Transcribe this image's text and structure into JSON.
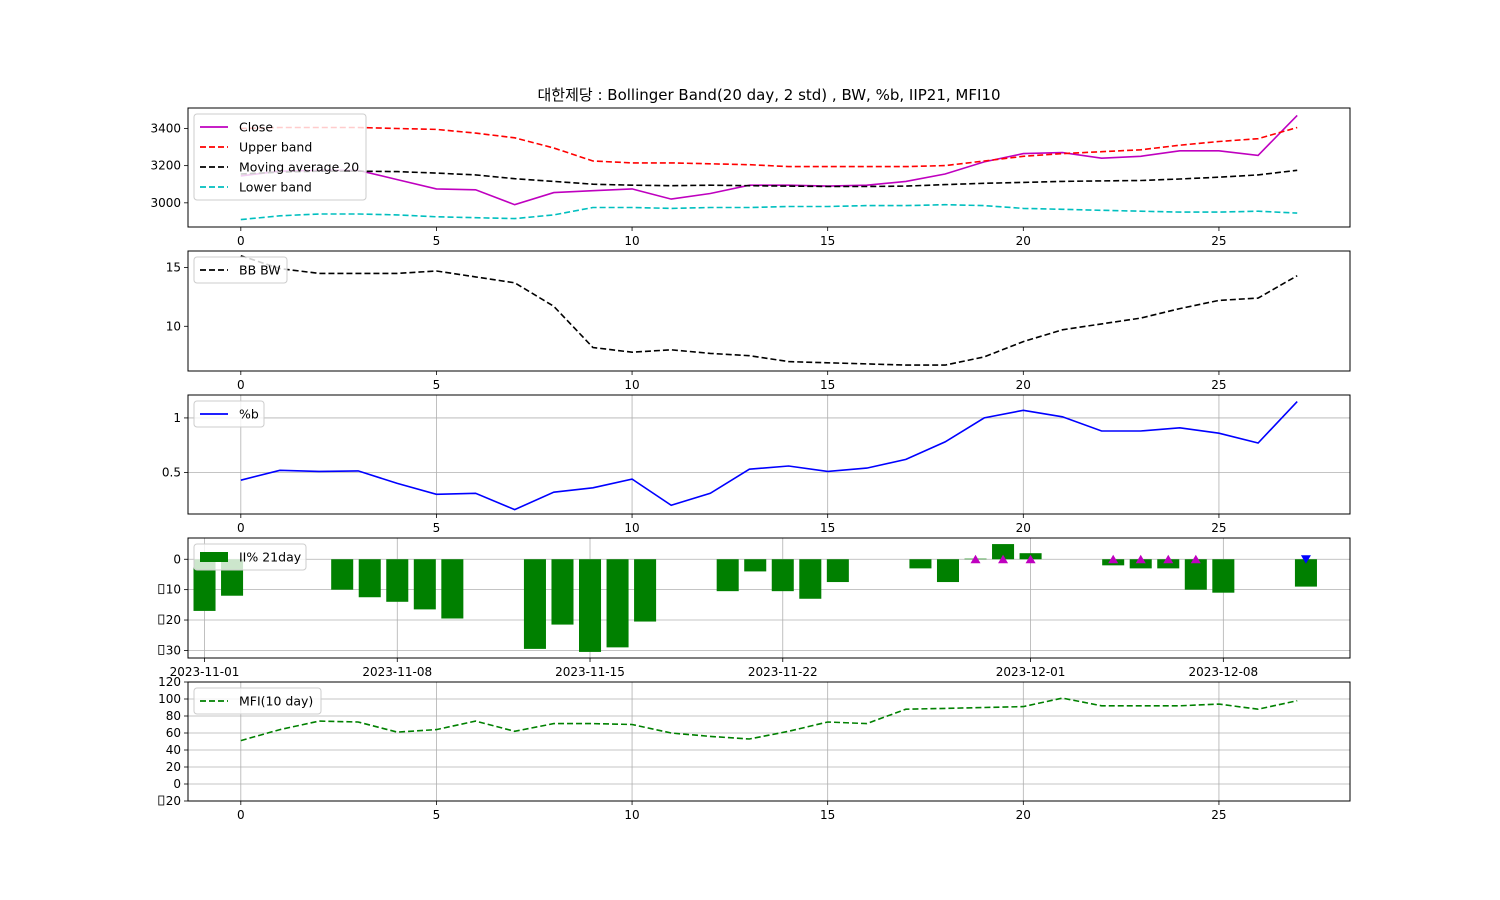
{
  "title": "대한제당 : Bollinger Band(20 day, 2 std) , BW, %b, IIP21, MFI10",
  "chart_data": [
    {
      "type": "line",
      "panel": "price",
      "x": [
        0,
        1,
        2,
        3,
        4,
        5,
        6,
        7,
        8,
        9,
        10,
        11,
        12,
        13,
        14,
        15,
        16,
        17,
        18,
        19,
        20,
        21,
        22,
        23,
        24,
        25,
        26,
        27
      ],
      "series": [
        {
          "name": "Close",
          "color": "#bf00bf",
          "style": "solid",
          "values": [
            3145,
            3170,
            3175,
            3175,
            3125,
            3075,
            3070,
            2990,
            3055,
            3065,
            3075,
            3020,
            3050,
            3095,
            3095,
            3090,
            3095,
            3115,
            3155,
            3220,
            3265,
            3270,
            3240,
            3250,
            3280,
            3280,
            3255,
            3470
          ]
        },
        {
          "name": "Upper band",
          "color": "#ff0000",
          "style": "dashed",
          "values": [
            3400,
            3405,
            3405,
            3405,
            3400,
            3395,
            3375,
            3350,
            3295,
            3225,
            3215,
            3215,
            3210,
            3205,
            3195,
            3195,
            3195,
            3195,
            3200,
            3225,
            3250,
            3265,
            3275,
            3285,
            3310,
            3330,
            3345,
            3405
          ]
        },
        {
          "name": "Moving average 20",
          "color": "#000000",
          "style": "dashed",
          "values": [
            3155,
            3165,
            3170,
            3170,
            3168,
            3160,
            3150,
            3130,
            3115,
            3100,
            3095,
            3092,
            3095,
            3092,
            3090,
            3088,
            3088,
            3090,
            3098,
            3105,
            3110,
            3115,
            3118,
            3120,
            3128,
            3138,
            3150,
            3175
          ]
        },
        {
          "name": "Lower band",
          "color": "#00bfbf",
          "style": "dashed",
          "values": [
            2910,
            2930,
            2940,
            2940,
            2935,
            2925,
            2920,
            2915,
            2935,
            2975,
            2975,
            2970,
            2975,
            2975,
            2980,
            2980,
            2985,
            2985,
            2990,
            2985,
            2970,
            2965,
            2960,
            2955,
            2950,
            2950,
            2955,
            2945
          ]
        }
      ],
      "xticks": [
        0,
        5,
        10,
        15,
        20,
        25
      ],
      "yticks": [
        3000,
        3200,
        3400
      ],
      "xlim": [
        -1.35,
        28.35
      ],
      "ylim": [
        2870,
        3510
      ],
      "grid": false,
      "legend": "upper left"
    },
    {
      "type": "line",
      "panel": "bw",
      "x": [
        0,
        1,
        2,
        3,
        4,
        5,
        6,
        7,
        8,
        9,
        10,
        11,
        12,
        13,
        14,
        15,
        16,
        17,
        18,
        19,
        20,
        21,
        22,
        23,
        24,
        25,
        26,
        27
      ],
      "series": [
        {
          "name": "BB BW",
          "color": "#000000",
          "style": "dashed",
          "values": [
            16.0,
            14.9,
            14.5,
            14.5,
            14.5,
            14.7,
            14.2,
            13.7,
            11.7,
            8.2,
            7.8,
            8.0,
            7.7,
            7.5,
            7.0,
            6.9,
            6.8,
            6.7,
            6.7,
            7.4,
            8.7,
            9.7,
            10.2,
            10.7,
            11.5,
            12.2,
            12.4,
            14.3
          ]
        }
      ],
      "xticks": [
        0,
        5,
        10,
        15,
        20,
        25
      ],
      "yticks": [
        10,
        15
      ],
      "xlim": [
        -1.35,
        28.35
      ],
      "ylim": [
        6.2,
        16.4
      ],
      "grid": false,
      "legend": "upper left"
    },
    {
      "type": "line",
      "panel": "pctb",
      "x": [
        0,
        1,
        2,
        3,
        4,
        5,
        6,
        7,
        8,
        9,
        10,
        11,
        12,
        13,
        14,
        15,
        16,
        17,
        18,
        19,
        20,
        21,
        22,
        23,
        24,
        25,
        26,
        27
      ],
      "series": [
        {
          "name": "%b",
          "color": "#0000ff",
          "style": "solid",
          "values": [
            0.43,
            0.52,
            0.51,
            0.515,
            0.4,
            0.3,
            0.31,
            0.16,
            0.32,
            0.36,
            0.44,
            0.2,
            0.31,
            0.53,
            0.56,
            0.51,
            0.54,
            0.62,
            0.78,
            1.0,
            1.07,
            1.01,
            0.88,
            0.88,
            0.91,
            0.86,
            0.77,
            1.15
          ]
        }
      ],
      "xticks": [
        0,
        5,
        10,
        15,
        20,
        25
      ],
      "yticks": [
        0.5,
        1.0
      ],
      "xlim": [
        -1.35,
        28.35
      ],
      "ylim": [
        0.12,
        1.21
      ],
      "grid": true,
      "legend": "upper left"
    },
    {
      "type": "bar",
      "panel": "iip",
      "series": [
        {
          "name": "II% 21day",
          "color": "#008000",
          "dates": [
            "2023-11-01",
            "2023-11-02",
            "2023-11-06",
            "2023-11-07",
            "2023-11-08",
            "2023-11-09",
            "2023-11-10",
            "2023-11-13",
            "2023-11-14",
            "2023-11-15",
            "2023-11-16",
            "2023-11-17",
            "2023-11-20",
            "2023-11-21",
            "2023-11-22",
            "2023-11-23",
            "2023-11-24",
            "2023-11-27",
            "2023-11-28",
            "2023-11-29",
            "2023-11-30",
            "2023-12-01",
            "2023-12-04",
            "2023-12-05",
            "2023-12-06",
            "2023-12-07",
            "2023-12-08",
            "2023-12-11"
          ],
          "values": [
            -17,
            -12,
            -10,
            -12.5,
            -14,
            -16.5,
            -19.5,
            -29.5,
            -21.5,
            -30.5,
            -29,
            -20.5,
            -10.5,
            -4,
            -10.5,
            -13,
            -7.5,
            -3,
            -7.5,
            0.2,
            5,
            2,
            -2,
            -3,
            -3,
            -10,
            -11,
            -9
          ]
        }
      ],
      "markers": [
        {
          "date": "2023-11-29",
          "value": 0,
          "shape": "triangle-up",
          "color": "#bf00bf"
        },
        {
          "date": "2023-11-30",
          "value": 0,
          "shape": "triangle-up",
          "color": "#bf00bf"
        },
        {
          "date": "2023-12-01",
          "value": 0,
          "shape": "triangle-up",
          "color": "#bf00bf"
        },
        {
          "date": "2023-12-04",
          "value": 0,
          "shape": "triangle-up",
          "color": "#bf00bf"
        },
        {
          "date": "2023-12-05",
          "value": 0,
          "shape": "triangle-up",
          "color": "#bf00bf"
        },
        {
          "date": "2023-12-06",
          "value": 0,
          "shape": "triangle-up",
          "color": "#bf00bf"
        },
        {
          "date": "2023-12-07",
          "value": 0,
          "shape": "triangle-up",
          "color": "#bf00bf"
        },
        {
          "date": "2023-12-11",
          "value": 0,
          "shape": "triangle-down",
          "color": "#0000ff"
        }
      ],
      "xticks": [
        "2023-11-01",
        "2023-11-08",
        "2023-11-15",
        "2023-11-22",
        "2023-12-01",
        "2023-12-08"
      ],
      "yticks": [
        0,
        -10,
        -20,
        -30
      ],
      "ytick_labels": [
        "0",
        "10",
        "20",
        "30"
      ],
      "xlim": [
        "2023-10-31T09:36",
        "2023-12-12T14:24"
      ],
      "ylim": [
        -32.5,
        7
      ],
      "grid": true,
      "legend": "upper left"
    },
    {
      "type": "line",
      "panel": "mfi",
      "x": [
        0,
        1,
        2,
        3,
        4,
        5,
        6,
        7,
        8,
        9,
        10,
        11,
        12,
        13,
        14,
        15,
        16,
        17,
        18,
        19,
        20,
        21,
        22,
        23,
        24,
        25,
        26,
        27
      ],
      "series": [
        {
          "name": "MFI(10 day)",
          "color": "#008000",
          "style": "dashed",
          "values": [
            51,
            64,
            74,
            73,
            61,
            64,
            74,
            62,
            71,
            71,
            70,
            60,
            56,
            53,
            62,
            73,
            71,
            88,
            89,
            90,
            91,
            101,
            92,
            92,
            92,
            94,
            88,
            98
          ]
        }
      ],
      "xticks": [
        0,
        5,
        10,
        15,
        20,
        25
      ],
      "yticks": [
        -20,
        0,
        20,
        40,
        60,
        80,
        100,
        120
      ],
      "ytick_labels": [
        "20",
        "0",
        "20",
        "40",
        "60",
        "80",
        "100",
        "120"
      ],
      "xlim": [
        -1.35,
        28.35
      ],
      "ylim": [
        -20,
        120
      ],
      "grid": true,
      "legend": "upper left"
    }
  ]
}
